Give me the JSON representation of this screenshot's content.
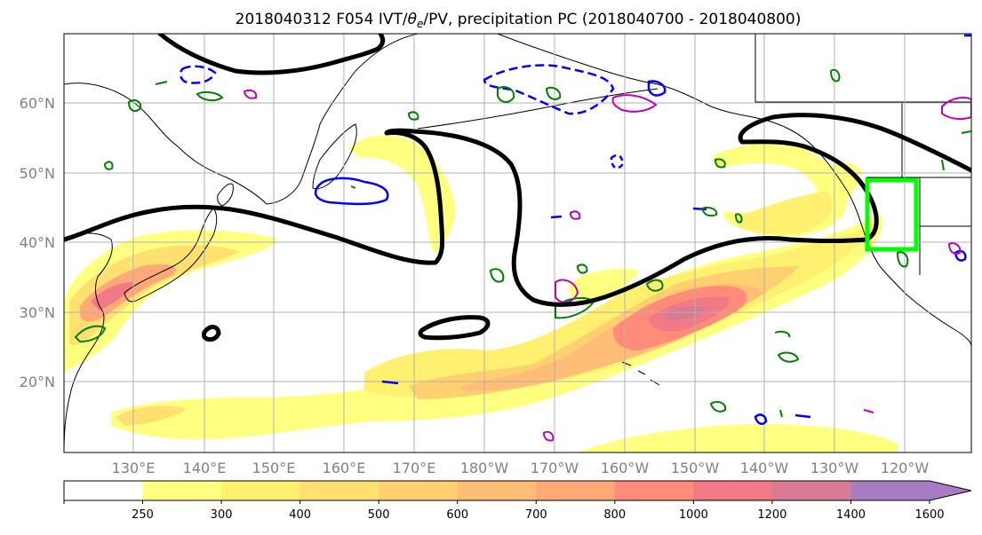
{
  "title": {
    "prefix": "2018040312 F054 IVT/",
    "theta": "θ",
    "theta_sub": "e",
    "suffix": "/PV, precipitation PC (2018040700 - 2018040800)"
  },
  "map": {
    "lon_labels": [
      "130°E",
      "140°E",
      "150°E",
      "160°E",
      "170°E",
      "180°W",
      "170°W",
      "160°W",
      "150°W",
      "140°W",
      "130°W",
      "120°W"
    ],
    "lat_labels": [
      "60°N",
      "50°N",
      "40°N",
      "30°N",
      "20°N"
    ],
    "fill_colors": [
      "#ffffff",
      "#ffff80",
      "#fff070",
      "#ffe070",
      "#ffd070",
      "#ffbd78",
      "#ffa878",
      "#ff8c78",
      "#f07a85",
      "#d97a95",
      "#a87cc4"
    ]
  },
  "colorbar": {
    "levels": [
      "250",
      "300",
      "400",
      "500",
      "600",
      "700",
      "800",
      "1000",
      "1200",
      "1400",
      "1600"
    ],
    "colors": [
      "#ffffff",
      "#ffff80",
      "#fff070",
      "#ffe070",
      "#ffd070",
      "#ffbd78",
      "#ffa878",
      "#ff8c78",
      "#f07a85",
      "#d97a95",
      "#a87cc4",
      "#a87cc4"
    ]
  },
  "contour_colors": {
    "pv": "#000000",
    "theta_warm": "#008000",
    "theta_cold": "#0000ff",
    "magenta": "#c000c0",
    "box": "#00ff00"
  }
}
